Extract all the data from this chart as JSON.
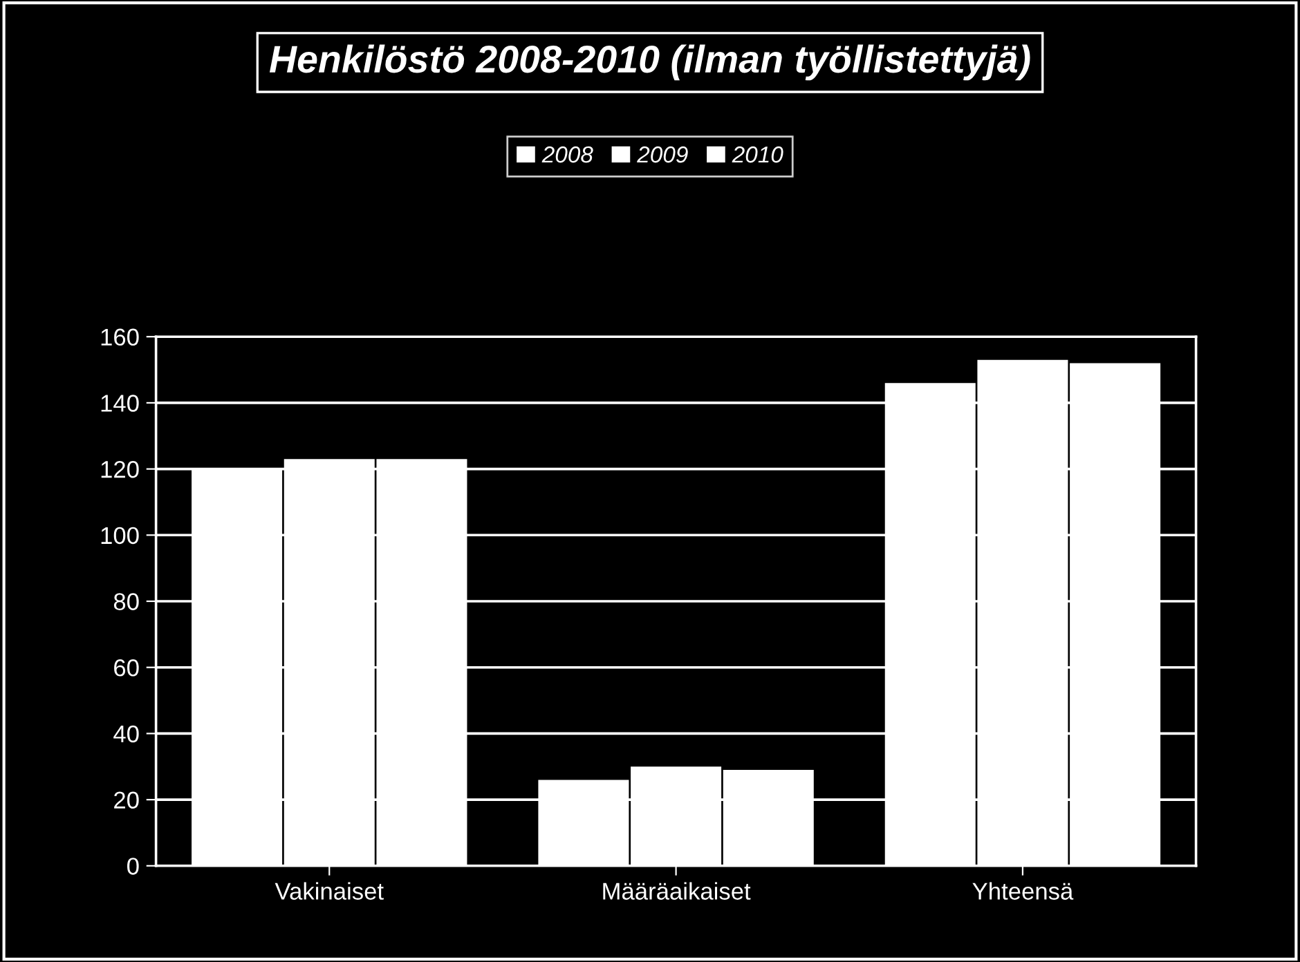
{
  "chart_data": {
    "type": "bar",
    "title": "Henkilöstö 2008-2010 (ilman työllistettyjä)",
    "categories": [
      "Vakinaiset",
      "Määräaikaiset",
      "Yhteensä"
    ],
    "series": [
      {
        "name": "2008",
        "color": "#ffffff",
        "values": [
          120,
          26,
          146
        ]
      },
      {
        "name": "2009",
        "color": "#ffffff",
        "values": [
          123,
          30,
          153
        ]
      },
      {
        "name": "2010",
        "color": "#ffffff",
        "values": [
          123,
          29,
          152
        ]
      }
    ],
    "ylim": [
      0,
      160
    ],
    "yticks": [
      0,
      20,
      40,
      60,
      80,
      100,
      120,
      140,
      160
    ],
    "grid": "y",
    "legend": "top"
  }
}
